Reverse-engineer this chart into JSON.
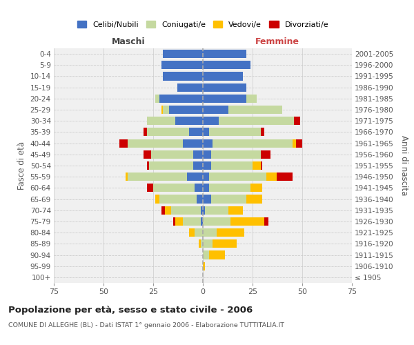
{
  "age_groups": [
    "100+",
    "95-99",
    "90-94",
    "85-89",
    "80-84",
    "75-79",
    "70-74",
    "65-69",
    "60-64",
    "55-59",
    "50-54",
    "45-49",
    "40-44",
    "35-39",
    "30-34",
    "25-29",
    "20-24",
    "15-19",
    "10-14",
    "5-9",
    "0-4"
  ],
  "birth_years": [
    "≤ 1905",
    "1906-1910",
    "1911-1915",
    "1916-1920",
    "1921-1925",
    "1926-1930",
    "1931-1935",
    "1936-1940",
    "1941-1945",
    "1946-1950",
    "1951-1955",
    "1956-1960",
    "1961-1965",
    "1966-1970",
    "1971-1975",
    "1976-1980",
    "1981-1985",
    "1986-1990",
    "1991-1995",
    "1996-2000",
    "2001-2005"
  ],
  "colors": {
    "celibe": "#4472c4",
    "coniugato": "#c5d9a0",
    "vedovo": "#ffc000",
    "divorziato": "#cc0000"
  },
  "males": {
    "celibe": [
      0,
      0,
      0,
      0,
      0,
      1,
      1,
      3,
      4,
      8,
      5,
      5,
      10,
      7,
      14,
      17,
      22,
      13,
      20,
      21,
      20
    ],
    "coniugato": [
      0,
      0,
      0,
      1,
      4,
      9,
      15,
      19,
      21,
      30,
      22,
      21,
      28,
      21,
      14,
      3,
      2,
      0,
      0,
      0,
      0
    ],
    "vedovo": [
      0,
      0,
      0,
      1,
      3,
      4,
      3,
      2,
      0,
      1,
      0,
      0,
      0,
      0,
      0,
      1,
      0,
      0,
      0,
      0,
      0
    ],
    "divorziato": [
      0,
      0,
      0,
      0,
      0,
      1,
      2,
      0,
      3,
      0,
      1,
      4,
      4,
      2,
      0,
      0,
      0,
      0,
      0,
      0,
      0
    ]
  },
  "females": {
    "celibe": [
      0,
      0,
      0,
      0,
      0,
      0,
      1,
      4,
      3,
      3,
      4,
      4,
      5,
      3,
      8,
      13,
      22,
      22,
      20,
      24,
      22
    ],
    "coniugato": [
      0,
      0,
      3,
      5,
      7,
      14,
      12,
      18,
      21,
      29,
      21,
      25,
      40,
      26,
      38,
      27,
      5,
      0,
      0,
      0,
      0
    ],
    "vedovo": [
      0,
      1,
      8,
      12,
      14,
      17,
      7,
      8,
      6,
      5,
      4,
      0,
      2,
      0,
      0,
      0,
      0,
      0,
      0,
      0,
      0
    ],
    "divorziato": [
      0,
      0,
      0,
      0,
      0,
      2,
      0,
      0,
      0,
      8,
      1,
      5,
      3,
      2,
      3,
      0,
      0,
      0,
      0,
      0,
      0
    ]
  },
  "xlim": 75,
  "title": "Popolazione per età, sesso e stato civile - 2006",
  "subtitle": "COMUNE DI ALLEGHE (BL) - Dati ISTAT 1° gennaio 2006 - Elaborazione TUTTITALIA.IT",
  "xlabel_left": "Maschi",
  "xlabel_right": "Femmine",
  "ylabel_left": "Fasce di età",
  "ylabel_right": "Anni di nascita",
  "legend_labels": [
    "Celibi/Nubili",
    "Coniugati/e",
    "Vedovi/e",
    "Divorziati/e"
  ],
  "background_color": "#ffffff",
  "plot_bg": "#f0f0f0",
  "grid_color": "#cccccc"
}
